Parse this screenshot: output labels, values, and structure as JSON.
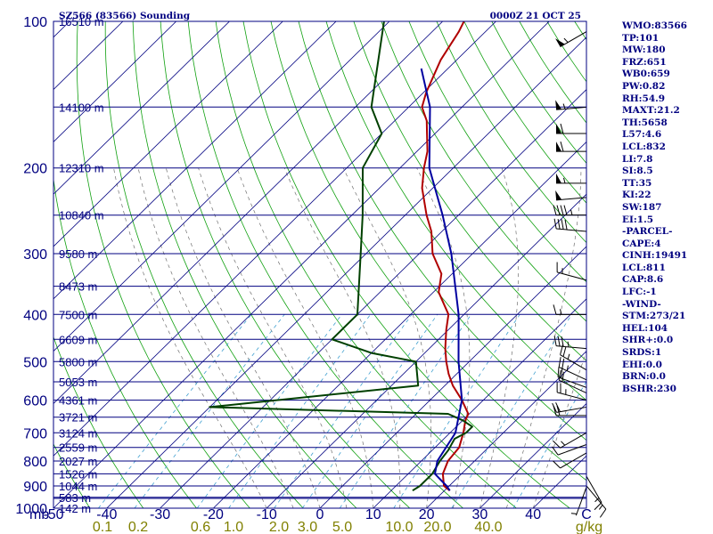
{
  "title_left": "SZ566 (83566) Sounding",
  "title_right": "0000Z 21 OCT 25",
  "chart_data": {
    "type": "skew-t",
    "pressure_levels": [
      100,
      200,
      300,
      400,
      500,
      600,
      700,
      800,
      900,
      1000
    ],
    "pressure_unit": "mb",
    "temperature_ticks": [
      -50,
      -40,
      -30,
      -20,
      -10,
      0,
      10,
      20,
      30,
      40
    ],
    "temperature_unit": "C",
    "mixing_ratio_ticks": [
      "0.1",
      "0.2",
      "0.6",
      "1.0",
      "2.0",
      "3.0",
      "5.0",
      "10.0",
      "20.0",
      "40.0"
    ],
    "mixing_ratio_unit": "g/kg",
    "height_labels": [
      {
        "p": 100,
        "h": "16510 m"
      },
      {
        "p": 150,
        "h": "14100 m"
      },
      {
        "p": 200,
        "h": "12310 m"
      },
      {
        "p": 250,
        "h": "10840 m"
      },
      {
        "p": 300,
        "h": "9580 m"
      },
      {
        "p": 350,
        "h": "8473 m"
      },
      {
        "p": 400,
        "h": "7500 m"
      },
      {
        "p": 450,
        "h": "6609 m"
      },
      {
        "p": 500,
        "h": "5800 m"
      },
      {
        "p": 550,
        "h": "5053 m"
      },
      {
        "p": 600,
        "h": "4361 m"
      },
      {
        "p": 650,
        "h": "3721 m"
      },
      {
        "p": 700,
        "h": "3124 m"
      },
      {
        "p": 750,
        "h": "2559 m"
      },
      {
        "p": 800,
        "h": "2027 m"
      },
      {
        "p": 850,
        "h": "1526 m"
      },
      {
        "p": 900,
        "h": "1044 m"
      },
      {
        "p": 950,
        "h": "583 m"
      },
      {
        "p": 1000,
        "h": "142 m"
      }
    ],
    "series": [
      {
        "name": "temperature",
        "color": "#b00000",
        "points": [
          [
            920,
            21.0
          ],
          [
            900,
            19.0
          ],
          [
            850,
            16.5
          ],
          [
            800,
            15.0
          ],
          [
            750,
            14.5
          ],
          [
            700,
            12.5
          ],
          [
            660,
            10.5
          ],
          [
            640,
            9.8
          ],
          [
            600,
            6.0
          ],
          [
            560,
            1.5
          ],
          [
            530,
            -1.5
          ],
          [
            500,
            -4.3
          ],
          [
            470,
            -7.0
          ],
          [
            430,
            -10.4
          ],
          [
            400,
            -12.9
          ],
          [
            360,
            -19.0
          ],
          [
            330,
            -22.0
          ],
          [
            300,
            -27.5
          ],
          [
            270,
            -32.0
          ],
          [
            250,
            -36.0
          ],
          [
            220,
            -42.0
          ],
          [
            200,
            -45.5
          ],
          [
            185,
            -48.0
          ],
          [
            170,
            -51.5
          ],
          [
            160,
            -54.0
          ],
          [
            150,
            -57.5
          ],
          [
            140,
            -59.5
          ],
          [
            120,
            -63.0
          ],
          [
            105,
            -65.0
          ],
          [
            100,
            -66.0
          ]
        ]
      },
      {
        "name": "dewpoint",
        "color": "#004000",
        "points": [
          [
            920,
            14.0
          ],
          [
            900,
            14.5
          ],
          [
            850,
            14.5
          ],
          [
            800,
            13.5
          ],
          [
            760,
            13.0
          ],
          [
            720,
            12.0
          ],
          [
            700,
            13.0
          ],
          [
            680,
            13.0
          ],
          [
            660,
            10.0
          ],
          [
            640,
            6.0
          ],
          [
            620,
            -40.0
          ],
          [
            560,
            -5.0
          ],
          [
            500,
            -10.0
          ],
          [
            480,
            -20.0
          ],
          [
            450,
            -30.0
          ],
          [
            400,
            -30.0
          ],
          [
            300,
            -41.0
          ],
          [
            250,
            -48.0
          ],
          [
            200,
            -57.0
          ],
          [
            170,
            -60.0
          ],
          [
            150,
            -67.0
          ],
          [
            100,
            -81.0
          ]
        ]
      },
      {
        "name": "parcel",
        "color": "#0000a0",
        "points": [
          [
            920,
            21.0
          ],
          [
            900,
            19.5
          ],
          [
            850,
            15.0
          ],
          [
            800,
            13.0
          ],
          [
            700,
            11.0
          ],
          [
            600,
            6.0
          ],
          [
            500,
            -2.0
          ],
          [
            400,
            -11.0
          ],
          [
            300,
            -24.0
          ],
          [
            250,
            -33.0
          ],
          [
            200,
            -44.5
          ],
          [
            150,
            -56.0
          ],
          [
            125,
            -65.0
          ]
        ]
      }
    ],
    "wind_barbs": [
      {
        "p": 105,
        "dir": 240,
        "spd": 55
      },
      {
        "p": 150,
        "dir": 265,
        "spd": 55
      },
      {
        "p": 170,
        "dir": 270,
        "spd": 60
      },
      {
        "p": 185,
        "dir": 270,
        "spd": 60
      },
      {
        "p": 215,
        "dir": 270,
        "spd": 55
      },
      {
        "p": 230,
        "dir": 265,
        "spd": 50
      },
      {
        "p": 250,
        "dir": 270,
        "spd": 45
      },
      {
        "p": 270,
        "dir": 275,
        "spd": 40
      },
      {
        "p": 340,
        "dir": 285,
        "spd": 15
      },
      {
        "p": 400,
        "dir": 270,
        "spd": 15
      },
      {
        "p": 470,
        "dir": 275,
        "spd": 35
      },
      {
        "p": 520,
        "dir": 300,
        "spd": 25
      },
      {
        "p": 545,
        "dir": 295,
        "spd": 25
      },
      {
        "p": 565,
        "dir": 290,
        "spd": 20
      },
      {
        "p": 580,
        "dir": 295,
        "spd": 20
      },
      {
        "p": 600,
        "dir": 285,
        "spd": 25
      },
      {
        "p": 620,
        "dir": 260,
        "spd": 20
      },
      {
        "p": 645,
        "dir": 270,
        "spd": 20
      },
      {
        "p": 700,
        "dir": 240,
        "spd": 15
      },
      {
        "p": 740,
        "dir": 250,
        "spd": 10
      },
      {
        "p": 770,
        "dir": 240,
        "spd": 10
      },
      {
        "p": 860,
        "dir": 150,
        "spd": 15
      },
      {
        "p": 900,
        "dir": 140,
        "spd": 15
      },
      {
        "p": 905,
        "dir": 200,
        "spd": 5
      }
    ]
  },
  "indices": [
    "WMO:83566",
    "TP:101",
    "MW:180",
    "FRZ:651",
    "WB0:659",
    "PW:0.82",
    "RH:54.9",
    "MAXT:21.2",
    "TH:5658",
    "L57:4.6",
    "LCL:832",
    "LI:7.8",
    "SI:8.5",
    "TT:35",
    "KI:22",
    "SW:187",
    "EI:1.5",
    "-PARCEL-",
    "CAPE:4",
    "CINH:19491",
    "LCL:811",
    "CAP:8.6",
    "LFC:-1",
    "-WIND-",
    "STM:273/21",
    "HEL:104",
    "SHR+:0.0",
    "SRDS:1",
    "EHI:0.0",
    "BRN:0.0",
    "BSHR:230"
  ]
}
